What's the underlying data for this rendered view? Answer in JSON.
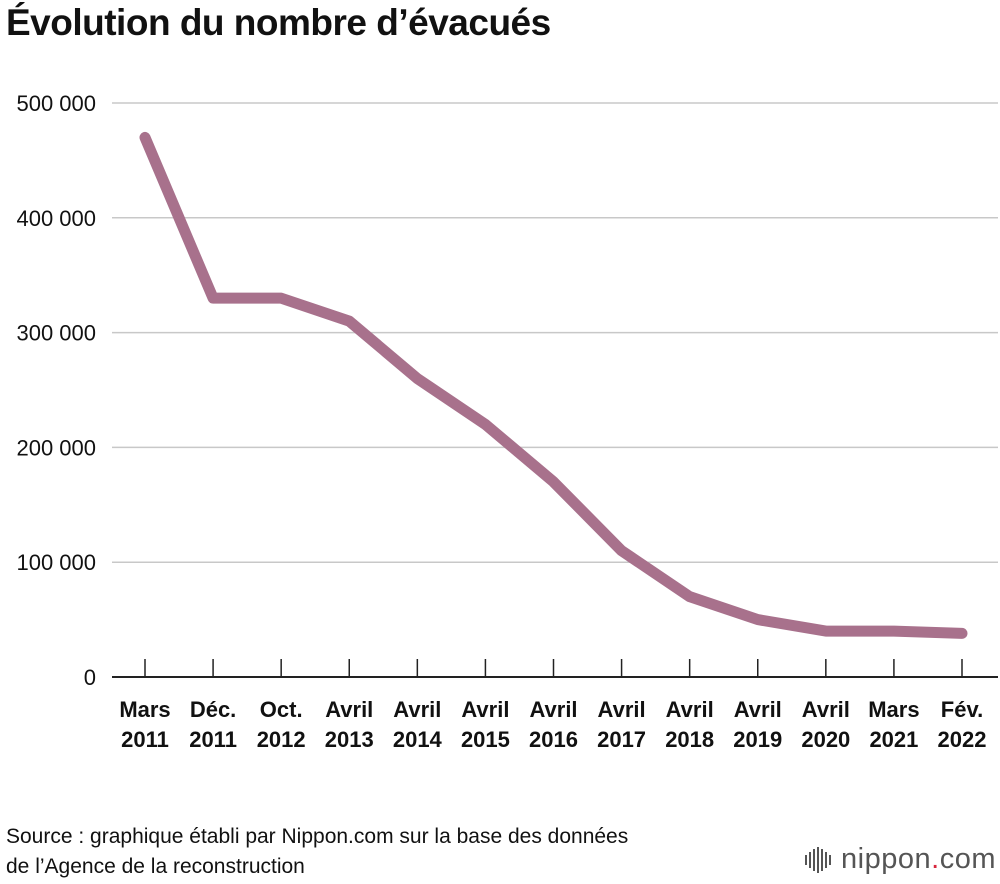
{
  "title": "Évolution du nombre d’évacués",
  "source": {
    "line1": "Source : graphique établi par Nippon.com sur la base des données",
    "line2": "de l’Agence de la reconstruction"
  },
  "logo": {
    "name": "nippon",
    "dot": ".",
    "tld": "com",
    "icon": "sound-wave-icon"
  },
  "colors": {
    "line": "#a8718c",
    "grid": "#c8c8c8",
    "axis": "#222222",
    "logo_dot": "#d7263d"
  },
  "chart_data": {
    "type": "line",
    "title": "Évolution du nombre d’évacués",
    "xlabel": "",
    "ylabel": "",
    "ylim": [
      0,
      500000
    ],
    "y_ticks": [
      0,
      100000,
      200000,
      300000,
      400000,
      500000
    ],
    "y_tick_labels": [
      "0",
      "100 000",
      "200 000",
      "300 000",
      "400 000",
      "500 000"
    ],
    "grid": true,
    "categories": [
      [
        "Mars",
        "2011"
      ],
      [
        "Déc.",
        "2011"
      ],
      [
        "Oct.",
        "2012"
      ],
      [
        "Avril",
        "2013"
      ],
      [
        "Avril",
        "2014"
      ],
      [
        "Avril",
        "2015"
      ],
      [
        "Avril",
        "2016"
      ],
      [
        "Avril",
        "2017"
      ],
      [
        "Avril",
        "2018"
      ],
      [
        "Avril",
        "2019"
      ],
      [
        "Avril",
        "2020"
      ],
      [
        "Mars",
        "2021"
      ],
      [
        "Fév.",
        "2022"
      ]
    ],
    "series": [
      {
        "name": "Évacués",
        "values": [
          470000,
          330000,
          330000,
          310000,
          260000,
          220000,
          170000,
          110000,
          70000,
          50000,
          40000,
          40000,
          38000
        ]
      }
    ]
  }
}
